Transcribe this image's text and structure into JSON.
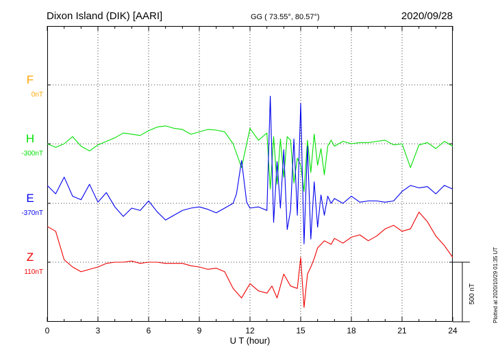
{
  "chart_data": {
    "type": "line",
    "title": "Dixon Island (DIK)  [AARI]",
    "coords": "GG ( 73.55°,  80.57°)",
    "date": "2020/09/28",
    "xlabel": "U T (hour)",
    "xlim": [
      0,
      24
    ],
    "x_ticks": [
      "0",
      "3",
      "6",
      "9",
      "12",
      "15",
      "18",
      "21",
      "24"
    ],
    "grid": true,
    "plotted_note": "Plotted at 2020/10/29 01:35 UT",
    "scale_label": "500 nT",
    "series": [
      {
        "name": "F",
        "baseline": "0nT",
        "color": "#ffa500",
        "x": [],
        "y": []
      },
      {
        "name": "H",
        "baseline": "-300nT",
        "color": "#00e000",
        "x": [
          0,
          0.5,
          1,
          1.5,
          2,
          2.5,
          3,
          3.5,
          4,
          4.5,
          5,
          5.5,
          6,
          6.5,
          7,
          7.5,
          8,
          8.5,
          9,
          9.5,
          10,
          10.5,
          11,
          11.5,
          12,
          12.5,
          13,
          13.2,
          13.4,
          13.6,
          13.8,
          14,
          14.2,
          14.4,
          14.6,
          14.8,
          15,
          15.2,
          15.4,
          15.6,
          15.8,
          16,
          16.2,
          16.4,
          16.6,
          16.8,
          17,
          17.5,
          18,
          18.5,
          19,
          19.5,
          20,
          20.5,
          21,
          21.5,
          22,
          22.5,
          23,
          23.5,
          24
        ],
        "y": [
          0,
          -30,
          0,
          60,
          -20,
          -60,
          -10,
          20,
          50,
          90,
          80,
          70,
          110,
          140,
          150,
          130,
          120,
          80,
          100,
          120,
          115,
          100,
          0,
          -200,
          130,
          30,
          90,
          -380,
          60,
          -340,
          40,
          -280,
          60,
          30,
          -330,
          -120,
          -180,
          -400,
          30,
          -240,
          80,
          -180,
          -40,
          -260,
          -20,
          30,
          -20,
          20,
          0,
          10,
          10,
          20,
          30,
          -10,
          0,
          -200,
          -10,
          10,
          -40,
          20,
          -20
        ]
      },
      {
        "name": "E",
        "baseline": "-370nT",
        "color": "#0000ee",
        "x": [
          0,
          0.5,
          1,
          1.5,
          2,
          2.5,
          3,
          3.5,
          4,
          4.5,
          5,
          5.5,
          6,
          6.5,
          7,
          7.5,
          8,
          8.5,
          9,
          9.5,
          10,
          10.5,
          11,
          11.2,
          11.5,
          11.8,
          12,
          12.5,
          13,
          13.2,
          13.4,
          13.6,
          13.8,
          14,
          14.2,
          14.4,
          14.6,
          14.8,
          15,
          15.2,
          15.4,
          15.6,
          15.8,
          16,
          16.2,
          16.4,
          16.6,
          16.8,
          17,
          17.5,
          18,
          18.5,
          19,
          19.5,
          20,
          20.5,
          21,
          21.5,
          22,
          22.5,
          23,
          23.5,
          24
        ],
        "y": [
          150,
          80,
          220,
          60,
          30,
          160,
          10,
          90,
          -30,
          -110,
          -40,
          -60,
          20,
          -70,
          -140,
          -100,
          -60,
          -40,
          -30,
          -50,
          -80,
          -40,
          0,
          80,
          360,
          10,
          -40,
          -30,
          -60,
          900,
          -160,
          350,
          -40,
          450,
          -220,
          -60,
          540,
          -100,
          840,
          -340,
          480,
          -300,
          180,
          -200,
          70,
          -100,
          60,
          0,
          40,
          0,
          60,
          10,
          20,
          20,
          10,
          20,
          100,
          150,
          130,
          140,
          80,
          150,
          120
        ]
      },
      {
        "name": "Z",
        "baseline": "110nT",
        "color": "#ee0000",
        "x": [
          0,
          0.5,
          1,
          1.5,
          2,
          2.5,
          3,
          3.5,
          4,
          4.5,
          5,
          5.5,
          6,
          6.5,
          7,
          7.5,
          8,
          8.5,
          9,
          9.5,
          10,
          10.5,
          11,
          11.5,
          12,
          12.5,
          13,
          13.3,
          13.6,
          14,
          14.4,
          14.8,
          15,
          15.2,
          15.4,
          15.6,
          15.8,
          16,
          16.4,
          16.8,
          17,
          17.5,
          18,
          18.5,
          19,
          19.5,
          20,
          20.5,
          21,
          21.5,
          22,
          22.5,
          23,
          23.5,
          24
        ],
        "y": [
          300,
          260,
          20,
          -40,
          -80,
          -60,
          -40,
          -10,
          0,
          0,
          10,
          -10,
          0,
          0,
          -10,
          -10,
          -10,
          -30,
          -40,
          -60,
          -50,
          -80,
          -220,
          -300,
          -180,
          -240,
          -260,
          -200,
          -300,
          -100,
          -200,
          -220,
          40,
          -380,
          -100,
          -40,
          30,
          120,
          180,
          150,
          200,
          160,
          210,
          230,
          180,
          220,
          280,
          310,
          260,
          280,
          420,
          340,
          220,
          140,
          40
        ]
      }
    ]
  }
}
